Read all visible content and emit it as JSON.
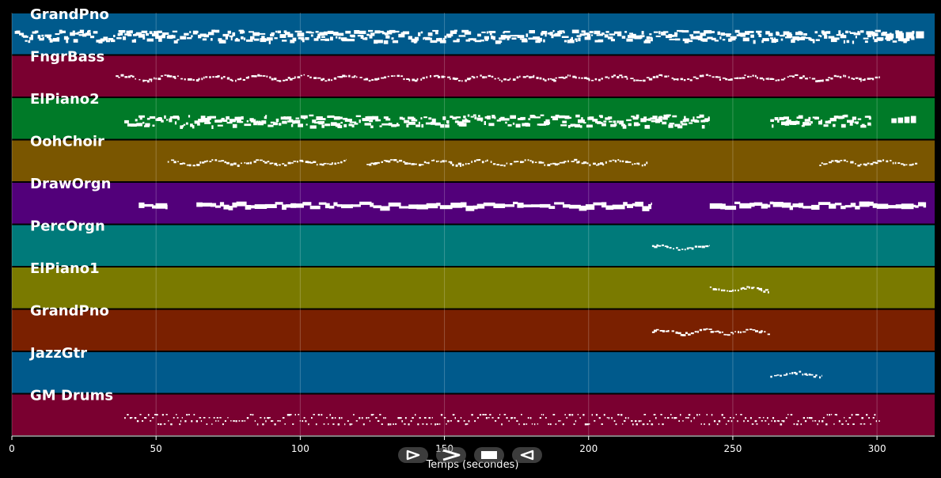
{
  "colors": {
    "background": "#000000",
    "grid": "#ffffff",
    "note": "#ffffff"
  },
  "controls": [
    {
      "name": "play-icon",
      "symbol": "play"
    },
    {
      "name": "fast-forward-icon",
      "symbol": "next"
    },
    {
      "name": "stop-icon",
      "symbol": "stop"
    },
    {
      "name": "rewind-icon",
      "symbol": "back"
    }
  ],
  "chart_data": {
    "type": "piano-roll",
    "xlabel": "Temps (secondes)",
    "xlim": [
      0,
      320
    ],
    "xticks": [
      0,
      50,
      100,
      150,
      200,
      250,
      300
    ],
    "grid": true,
    "tracks": [
      {
        "name": "GrandPno",
        "color": "#005a8c",
        "segments": [
          [
            1,
            313
          ]
        ],
        "density": "dense",
        "end_cluster": [
          303,
          317
        ]
      },
      {
        "name": "FngrBass",
        "color": "#7a0030",
        "segments": [
          [
            36,
            301
          ]
        ],
        "density": "sparse"
      },
      {
        "name": "ElPiano2",
        "color": "#007a28",
        "segments": [
          [
            39,
            242
          ],
          [
            263,
            298
          ]
        ],
        "density": "dense",
        "end_cluster": [
          305,
          314
        ]
      },
      {
        "name": "OohChoir",
        "color": "#7a5600",
        "segments": [
          [
            54,
            116
          ],
          [
            123,
            221
          ],
          [
            280,
            314
          ]
        ],
        "density": "sparse"
      },
      {
        "name": "DrawOrgn",
        "color": "#52007a",
        "segments": [
          [
            44,
            54
          ],
          [
            64,
            222
          ],
          [
            242,
            317
          ]
        ],
        "density": "block"
      },
      {
        "name": "PercOrgn",
        "color": "#007a7a",
        "segments": [
          [
            222,
            242
          ]
        ],
        "density": "sparse"
      },
      {
        "name": "ElPiano1",
        "color": "#7a7a00",
        "segments": [
          [
            242,
            263
          ]
        ],
        "density": "sparse"
      },
      {
        "name": "GrandPno",
        "color": "#7a2000",
        "segments": [
          [
            222,
            263
          ]
        ],
        "density": "sparse"
      },
      {
        "name": "JazzGtr",
        "color": "#005a8c",
        "segments": [
          [
            263,
            281
          ]
        ],
        "density": "sparse"
      },
      {
        "name": "GM Drums",
        "color": "#7a0030",
        "segments": [
          [
            39,
            301
          ]
        ],
        "density": "drums"
      }
    ]
  }
}
